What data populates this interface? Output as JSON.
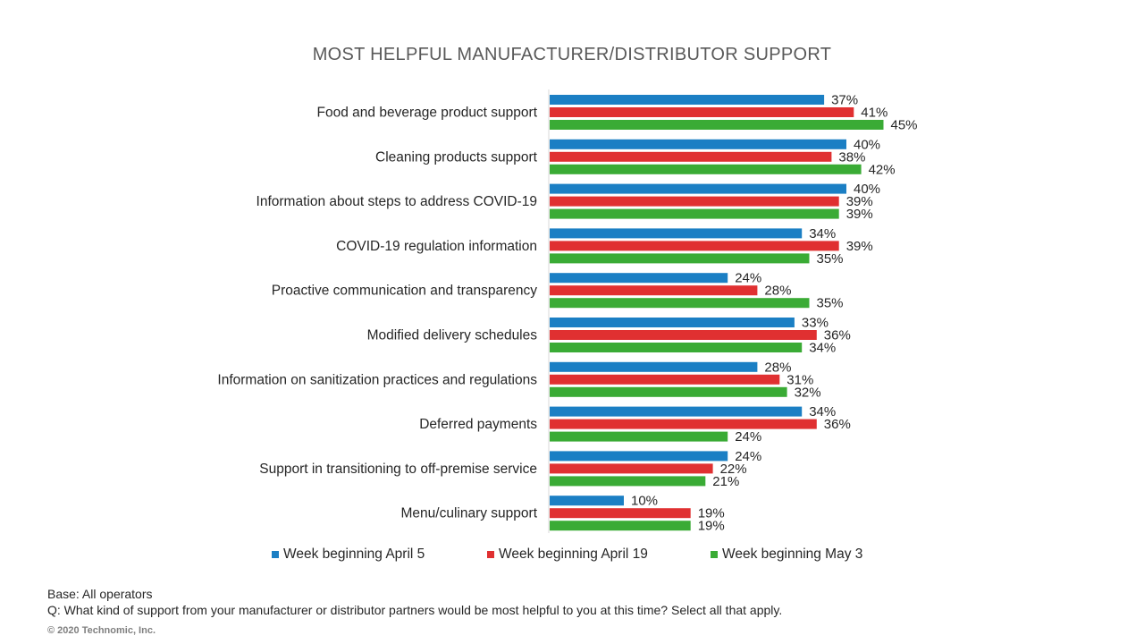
{
  "chart_data": {
    "type": "bar",
    "orientation": "horizontal",
    "title": "MOST HELPFUL MANUFACTURER/DISTRIBUTOR SUPPORT",
    "categories": [
      "Food and beverage product support",
      "Cleaning products support",
      "Information about steps to address COVID-19",
      "COVID-19 regulation information",
      "Proactive communication and transparency",
      "Modified delivery schedules",
      "Information on sanitization practices and regulations",
      "Deferred payments",
      "Support in transitioning to off-premise service",
      "Menu/culinary support"
    ],
    "series": [
      {
        "name": "Week beginning April 5",
        "color": "#1b7fc4",
        "values": [
          37,
          40,
          40,
          34,
          24,
          33,
          28,
          34,
          24,
          10
        ]
      },
      {
        "name": "Week beginning April 19",
        "color": "#e03031",
        "values": [
          41,
          38,
          39,
          39,
          28,
          36,
          31,
          36,
          22,
          19
        ]
      },
      {
        "name": "Week beginning May 3",
        "color": "#3aab35",
        "values": [
          45,
          42,
          39,
          35,
          35,
          34,
          32,
          24,
          21,
          19
        ]
      }
    ],
    "value_suffix": "%",
    "xlabel": "",
    "ylabel": "",
    "xlim": [
      0,
      100
    ],
    "grid": false,
    "legend_position": "bottom"
  },
  "notes": {
    "base": "Base: All operators",
    "question": "Q: What kind of support from your manufacturer or distributor partners would be most helpful to you at this time? Select all that apply."
  },
  "copyright": "© 2020 Technomic, Inc."
}
